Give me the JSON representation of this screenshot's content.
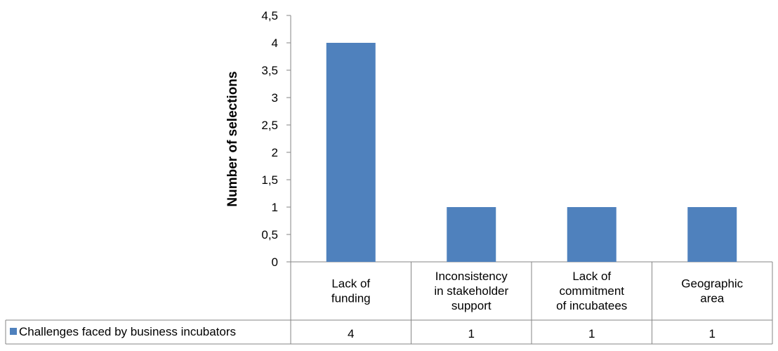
{
  "chart_data": {
    "type": "bar",
    "title": "",
    "xlabel": "",
    "ylabel": "Number of selections",
    "ylim": [
      0,
      4.5
    ],
    "y_ticks": [
      "0",
      "0,5",
      "1",
      "1,5",
      "2",
      "2,5",
      "3",
      "3,5",
      "4",
      "4,5"
    ],
    "y_tick_values": [
      0,
      0.5,
      1,
      1.5,
      2,
      2.5,
      3,
      3.5,
      4,
      4.5
    ],
    "categories": [
      [
        "Lack of",
        "funding"
      ],
      [
        "Inconsistency",
        "in stakeholder",
        "support"
      ],
      [
        "Lack of",
        "commitment",
        "of incubatees"
      ],
      [
        "Geographic",
        "area"
      ]
    ],
    "series": [
      {
        "name": "Challenges faced by business incubators",
        "values": [
          4,
          1,
          1,
          1
        ],
        "value_labels": [
          "4",
          "1",
          "1",
          "1"
        ]
      }
    ],
    "grid": false,
    "legend": "data-table",
    "bar_color": "#4f81bd",
    "axis_color": "#868686"
  }
}
